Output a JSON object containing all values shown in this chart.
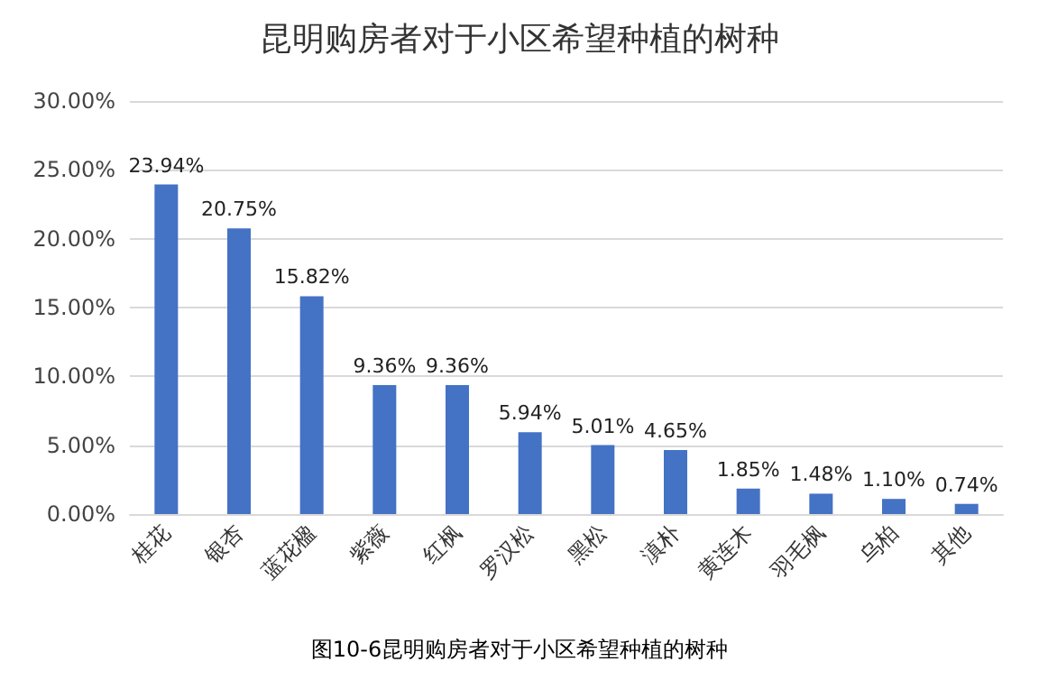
{
  "chart_data": {
    "type": "bar",
    "title": "昆明购房者对于小区希望种植的树种",
    "categories": [
      "桂花",
      "银杏",
      "蓝花楹",
      "紫薇",
      "红枫",
      "罗汉松",
      "黑松",
      "滇朴",
      "黄连木",
      "羽毛枫",
      "乌柏",
      "其他"
    ],
    "values": [
      23.94,
      20.75,
      15.82,
      9.36,
      9.36,
      5.94,
      5.01,
      4.65,
      1.85,
      1.48,
      1.1,
      0.74
    ],
    "value_labels": [
      "23.94%",
      "20.75%",
      "15.82%",
      "9.36%",
      "9.36%",
      "5.94%",
      "5.01%",
      "4.65%",
      "1.85%",
      "1.48%",
      "1.10%",
      "0.74%"
    ],
    "color": "#4472c4",
    "ylim": [
      0,
      30
    ],
    "yticks": [
      {
        "value": 0,
        "label": "0.00%"
      },
      {
        "value": 5,
        "label": "5.00%"
      },
      {
        "value": 10,
        "label": "10.00%"
      },
      {
        "value": 15,
        "label": "15.00%"
      },
      {
        "value": 20,
        "label": "20.00%"
      },
      {
        "value": 25,
        "label": "25.00%"
      },
      {
        "value": 30,
        "label": "30.00%"
      }
    ],
    "grid": "y",
    "annotations": [
      "图10-6昆明购房者对于小区希望种植的树种"
    ]
  }
}
